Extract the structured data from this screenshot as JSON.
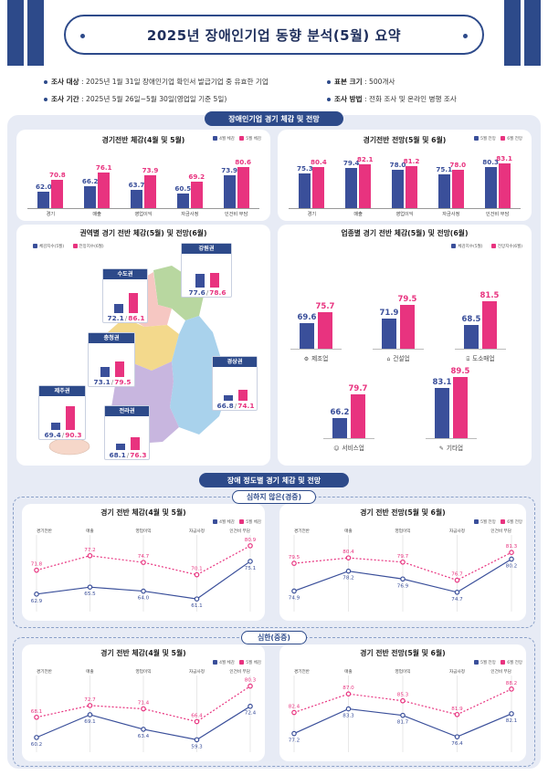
{
  "header": {
    "title": "2025년 장애인기업 동향 분석(5월) 요약"
  },
  "info": {
    "target_label": "조사 대상",
    "target_value": ": 2025년 1월 31일 장애인기업 확인서 발급기업 중 유효한 기업",
    "sample_label": "표본 크기",
    "sample_value": ": 500개사",
    "period_label": "조사 기간",
    "period_value": ": 2025년 5월 26일~5월 30일(영업일 기준 5일)",
    "method_label": "조사 방법",
    "method_value": ": 전화 조사 및 온라인 병행 조사"
  },
  "colors": {
    "blue": "#3a4f9a",
    "pink": "#e8337f",
    "navy": "#2d4a8a"
  },
  "sections": {
    "overall_pill": "장애인기업 경기 체감 및 전망",
    "severity_pill": "장애 정도별 경기 체감 및 전망",
    "mild_pill": "심하지 않은(경증)",
    "severe_pill": "심한(중증)"
  },
  "chart_data": [
    {
      "type": "bar",
      "title": "경기전반 체감(4월 및 5월)",
      "categories": [
        "경기",
        "매출",
        "영업이익",
        "자금사정",
        "인건비 부담"
      ],
      "series": [
        {
          "name": "4월 체감",
          "values": [
            62.0,
            66.2,
            63.7,
            60.5,
            73.9
          ]
        },
        {
          "name": "5월 체감",
          "values": [
            70.8,
            76.1,
            73.9,
            69.2,
            80.6
          ]
        }
      ]
    },
    {
      "type": "bar",
      "title": "경기전반 전망(5월 및 6월)",
      "categories": [
        "경기",
        "매출",
        "영업이익",
        "자금사정",
        "인건비 부담"
      ],
      "series": [
        {
          "name": "5월 전망",
          "values": [
            75.3,
            79.4,
            78.0,
            75.1,
            80.3
          ]
        },
        {
          "name": "6월 전망",
          "values": [
            80.4,
            82.1,
            81.2,
            78.0,
            83.1
          ]
        }
      ]
    },
    {
      "type": "bar",
      "title": "권역별 경기 전반 체감(5월) 및 전망(6월)",
      "categories": [
        "강원권",
        "수도권",
        "충청권",
        "경상권",
        "제주권",
        "전라권"
      ],
      "display_values": [
        "77.6",
        "72.1",
        "73.1",
        "66.8",
        "69.4",
        "68.1"
      ],
      "display_values_2": [
        "78.6",
        "86.1",
        "79.5",
        "74.1",
        "90.3",
        "76.3"
      ],
      "series": [
        {
          "name": "체감지수(5월)",
          "values": [
            77.6,
            72.1,
            73.1,
            66.8,
            69.4,
            68.1
          ]
        },
        {
          "name": "전망지수(6월)",
          "values": [
            78.6,
            86.1,
            79.5,
            74.1,
            90.3,
            76.3
          ]
        }
      ]
    },
    {
      "type": "bar",
      "title": "업종별 경기 전반 체감(5월) 및 전망(6월)",
      "categories": [
        "제조업",
        "건설업",
        "도소매업",
        "서비스업",
        "기타업"
      ],
      "series": [
        {
          "name": "체감지수(5월)",
          "values": [
            69.6,
            71.9,
            68.5,
            66.2,
            83.1
          ]
        },
        {
          "name": "전망지수(6월)",
          "values": [
            75.7,
            79.5,
            81.5,
            79.7,
            89.5
          ]
        }
      ]
    },
    {
      "type": "line",
      "title": "경기 전반 체감(4월 및 5월)",
      "group": "심하지 않은(경증)",
      "categories": [
        "경기전반",
        "매출",
        "영업이익",
        "자금사정",
        "인건비 부담"
      ],
      "series": [
        {
          "name": "4월 체감",
          "values": [
            62.9,
            65.5,
            64.0,
            61.1,
            75.1
          ]
        },
        {
          "name": "5월 체감",
          "values": [
            71.8,
            77.2,
            74.7,
            70.1,
            80.9
          ]
        }
      ]
    },
    {
      "type": "line",
      "title": "경기 전반 전망(5월 및 6월)",
      "group": "심하지 않은(경증)",
      "categories": [
        "경기전반",
        "매출",
        "영업이익",
        "자금사정",
        "인건비 부담"
      ],
      "series": [
        {
          "name": "5월 전망",
          "values": [
            74.9,
            78.2,
            76.9,
            74.7,
            80.2
          ]
        },
        {
          "name": "6월 전망",
          "values": [
            79.5,
            80.4,
            79.7,
            76.7,
            81.3
          ]
        }
      ]
    },
    {
      "type": "line",
      "title": "경기 전반 체감(4월 및 5월)",
      "group": "심한(중증)",
      "categories": [
        "경기전반",
        "매출",
        "영업이익",
        "자금사정",
        "인건비 부담"
      ],
      "series": [
        {
          "name": "4월 체감",
          "values": [
            60.2,
            69.1,
            63.4,
            59.3,
            72.4
          ]
        },
        {
          "name": "5월 체감",
          "values": [
            68.1,
            72.7,
            71.4,
            66.4,
            80.3
          ]
        }
      ]
    },
    {
      "type": "line",
      "title": "경기 전반 전망(5월 및 6월)",
      "group": "심한(중증)",
      "categories": [
        "경기전반",
        "매출",
        "영업이익",
        "자금사정",
        "인건비 부담"
      ],
      "series": [
        {
          "name": "5월 전망",
          "values": [
            77.2,
            83.3,
            81.7,
            76.4,
            82.1
          ]
        },
        {
          "name": "6월 전망",
          "values": [
            82.4,
            87.0,
            85.3,
            81.9,
            88.2
          ]
        }
      ]
    }
  ]
}
